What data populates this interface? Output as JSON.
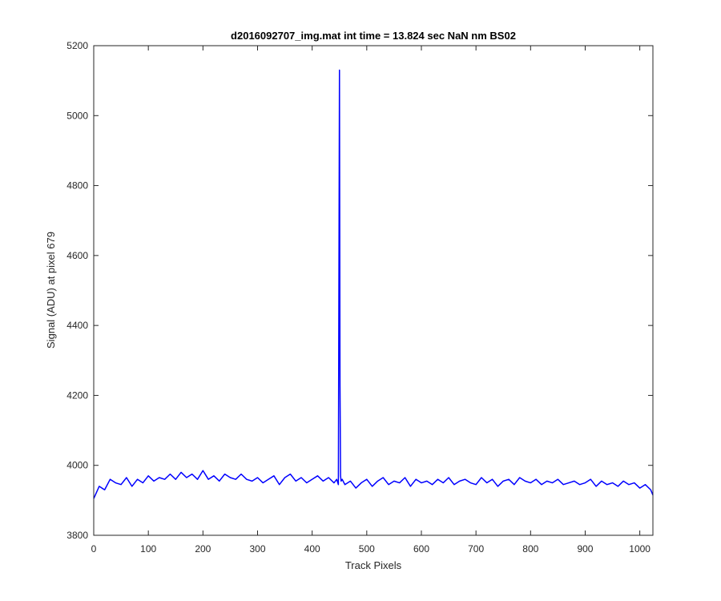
{
  "chart_data": {
    "type": "line",
    "title": "d2016092707_img.mat int time = 13.824 sec  NaN nm BS02",
    "xlabel": "Track Pixels",
    "ylabel": "Signal (ADU) at pixel 679",
    "xlim": [
      0,
      1024
    ],
    "ylim": [
      3800,
      5200
    ],
    "xticks": [
      "0",
      "100",
      "200",
      "300",
      "400",
      "500",
      "600",
      "700",
      "800",
      "900",
      "1000"
    ],
    "yticks": [
      "3800",
      "4000",
      "4200",
      "4400",
      "4600",
      "4800",
      "5000",
      "5200"
    ],
    "grid": false,
    "series": [
      {
        "color": "#0000ff",
        "x": [
          0,
          10,
          20,
          30,
          40,
          50,
          60,
          70,
          80,
          90,
          100,
          110,
          120,
          130,
          140,
          150,
          160,
          170,
          180,
          190,
          200,
          210,
          220,
          230,
          240,
          250,
          260,
          270,
          280,
          290,
          300,
          310,
          320,
          330,
          340,
          350,
          360,
          370,
          380,
          390,
          400,
          410,
          420,
          430,
          440,
          445,
          448,
          450,
          451,
          452,
          453,
          455,
          460,
          470,
          480,
          490,
          500,
          510,
          520,
          530,
          540,
          550,
          560,
          570,
          580,
          590,
          600,
          610,
          620,
          630,
          640,
          650,
          660,
          670,
          680,
          690,
          700,
          710,
          720,
          730,
          740,
          750,
          760,
          770,
          780,
          790,
          800,
          810,
          820,
          830,
          840,
          850,
          860,
          870,
          880,
          890,
          900,
          910,
          920,
          930,
          940,
          950,
          960,
          970,
          980,
          990,
          1000,
          1010,
          1020,
          1024
        ],
        "y": [
          3905,
          3940,
          3930,
          3960,
          3950,
          3945,
          3965,
          3940,
          3960,
          3950,
          3970,
          3955,
          3965,
          3960,
          3975,
          3960,
          3980,
          3965,
          3975,
          3960,
          3985,
          3960,
          3970,
          3955,
          3975,
          3965,
          3960,
          3975,
          3960,
          3955,
          3965,
          3950,
          3960,
          3970,
          3945,
          3965,
          3975,
          3955,
          3965,
          3950,
          3960,
          3970,
          3955,
          3965,
          3950,
          3960,
          3945,
          5130,
          4230,
          3970,
          3955,
          3960,
          3945,
          3955,
          3935,
          3950,
          3960,
          3940,
          3955,
          3965,
          3945,
          3955,
          3950,
          3965,
          3940,
          3960,
          3950,
          3955,
          3945,
          3960,
          3950,
          3965,
          3945,
          3955,
          3960,
          3950,
          3945,
          3965,
          3950,
          3960,
          3940,
          3955,
          3960,
          3945,
          3965,
          3955,
          3950,
          3960,
          3945,
          3955,
          3950,
          3960,
          3945,
          3950,
          3955,
          3945,
          3950,
          3960,
          3940,
          3955,
          3945,
          3950,
          3940,
          3955,
          3945,
          3950,
          3935,
          3945,
          3930,
          3915
        ]
      }
    ]
  }
}
